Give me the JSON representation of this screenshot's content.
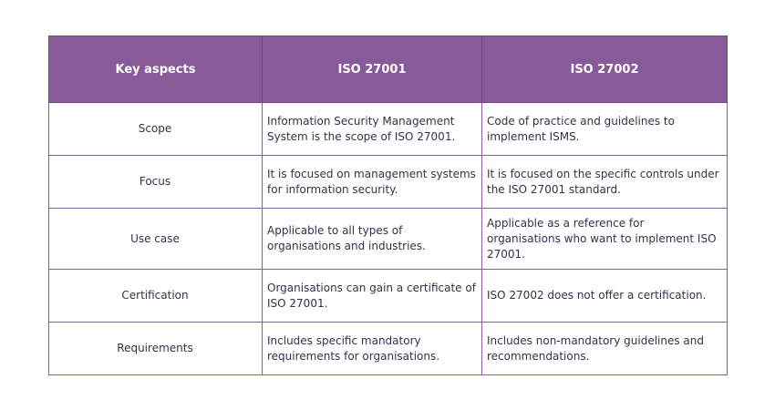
{
  "table": {
    "headers": [
      "Key aspects",
      "ISO 27001",
      "ISO 27002"
    ],
    "rows": [
      {
        "aspect": "Scope",
        "iso27001": "Information Security Management System is the scope of ISO 27001.",
        "iso27002": "Code of practice and guidelines to implement ISMS."
      },
      {
        "aspect": "Focus",
        "iso27001": "It is focused on management systems for information security.",
        "iso27002": "It is focused on the specific controls under the ISO 27001 standard."
      },
      {
        "aspect": "Use case",
        "iso27001": "Applicable to all types of organisations and industries.",
        "iso27002": "Applicable as a reference for organisations who want to implement ISO 27001."
      },
      {
        "aspect": "Certification",
        "iso27001": "Organisations can gain a certificate of ISO 27001.",
        "iso27002": "ISO 27002 does not offer a certification."
      },
      {
        "aspect": "Requirements",
        "iso27001": "Includes specific mandatory requirements for organisations.",
        "iso27002": "Includes non-mandatory guidelines and recommendations."
      }
    ]
  },
  "colors": {
    "header_bg": "#895a9a",
    "border": "#8a5e9c"
  }
}
